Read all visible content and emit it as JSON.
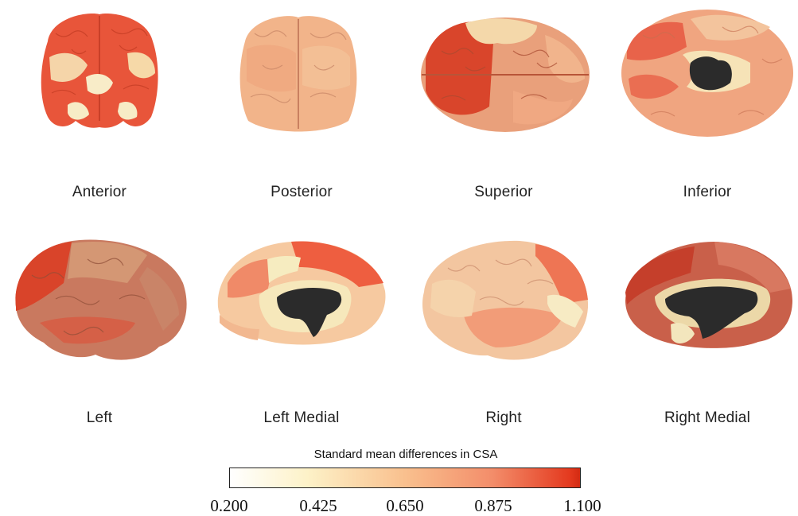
{
  "views": [
    {
      "id": "anterior",
      "label": "Anterior"
    },
    {
      "id": "posterior",
      "label": "Posterior"
    },
    {
      "id": "superior",
      "label": "Superior"
    },
    {
      "id": "inferior",
      "label": "Inferior"
    },
    {
      "id": "left",
      "label": "Left"
    },
    {
      "id": "left-medial",
      "label": "Left Medial"
    },
    {
      "id": "right",
      "label": "Right"
    },
    {
      "id": "right-medial",
      "label": "Right Medial"
    }
  ],
  "legend": {
    "title": "Standard mean differences in CSA",
    "ticks": [
      "0.200",
      "0.425",
      "0.650",
      "0.875",
      "1.100"
    ],
    "min_color": "#ffffff",
    "max_color": "#d32a12"
  },
  "colors": {
    "high": "#e2452a",
    "mid_high": "#ec7a58",
    "mid": "#f0a47e",
    "low": "#f7d2a6",
    "lowest": "#f6ecc2",
    "medial_wall": "#2b2b2b"
  }
}
